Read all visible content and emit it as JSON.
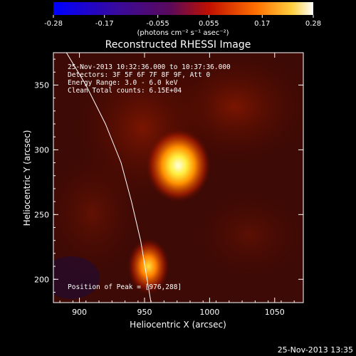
{
  "colorbar": {
    "ticks": [
      "-0.28",
      "-0.17",
      "-0.055",
      "0.055",
      "0.17",
      "0.28"
    ],
    "unit_label": "(photons cm⁻² s⁻¹ asec⁻²)",
    "range": [
      -0.28,
      0.28
    ]
  },
  "chart_data": {
    "type": "heatmap",
    "title": "Reconstructed RHESSI Image",
    "xlabel": "Heliocentric X (arcsec)",
    "ylabel": "Heliocentric Y (arcsec)",
    "xlim": [
      880,
      1072
    ],
    "ylim": [
      182,
      375
    ],
    "x_ticks": [
      900,
      950,
      1000,
      1050
    ],
    "y_ticks": [
      200,
      250,
      300,
      350
    ],
    "sources": [
      {
        "x": 976,
        "y": 288,
        "peak": 0.28
      },
      {
        "x": 953,
        "y": 210,
        "peak": 0.2
      }
    ],
    "limb_points": [
      [
        890,
        375
      ],
      [
        905,
        350
      ],
      [
        920,
        320
      ],
      [
        932,
        290
      ],
      [
        940,
        260
      ],
      [
        947,
        230
      ],
      [
        952,
        200
      ],
      [
        955,
        182
      ]
    ],
    "annotations": {
      "time_range": "25-Nov-2013 10:32:36.000 to 10:37:36.000",
      "detectors": "Detectors: 3F 5F 6F 7F 8F 9F, Att 0",
      "energy": "Energy Range: 3.0 - 6.0 keV",
      "clean": "Clean    Total counts: 6.15E+04",
      "peak": "Position of Peak = [976,288]"
    }
  },
  "footer": {
    "timestamp": "25-Nov-2013 13:35"
  }
}
